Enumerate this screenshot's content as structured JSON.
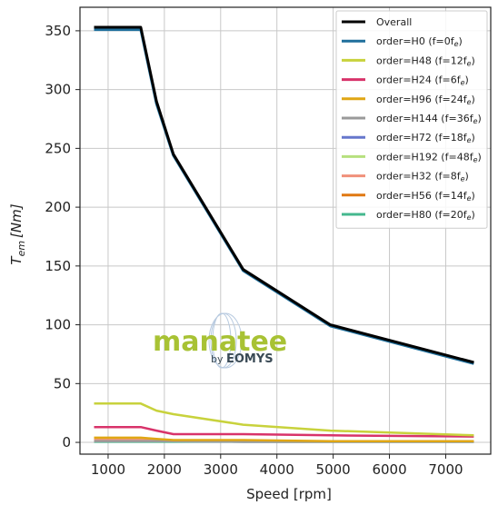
{
  "chart_data": {
    "type": "line",
    "title": "",
    "xlabel": "Speed [rpm]",
    "ylabel_main": "T",
    "ylabel_sub": "em",
    "ylabel_unit": "[Nm]",
    "xlim": [
      500,
      7800
    ],
    "ylim": [
      -10,
      370
    ],
    "xticks": [
      1000,
      2000,
      3000,
      4000,
      5000,
      6000,
      7000
    ],
    "yticks": [
      0,
      50,
      100,
      150,
      200,
      250,
      300,
      350
    ],
    "grid": true,
    "legend_position": "top-right",
    "series": [
      {
        "name": "Overall",
        "color": "#000000",
        "x": [
          750,
          1580,
          1860,
          2160,
          3400,
          4950,
          7500
        ],
        "y": [
          353,
          353,
          290,
          245,
          147,
          100,
          68
        ]
      },
      {
        "name": "order=H0 (f=0f",
        "color": "#1f6f9c",
        "x": [
          750,
          1580,
          1860,
          2160,
          3400,
          4950,
          7500
        ],
        "y": [
          351,
          351,
          288,
          244,
          146,
          99,
          67
        ]
      },
      {
        "name": "order=H48 (f=12f",
        "color": "#c8d23c",
        "x": [
          750,
          1580,
          1860,
          2160,
          3400,
          4950,
          7500
        ],
        "y": [
          33,
          33,
          27,
          24,
          15,
          10,
          6
        ]
      },
      {
        "name": "order=H24 (f=6f",
        "color": "#d8336a",
        "x": [
          750,
          1580,
          1860,
          2160,
          3400,
          4950,
          7500
        ],
        "y": [
          13,
          13,
          10,
          7,
          7,
          6,
          5
        ]
      },
      {
        "name": "order=H96 (f=24f",
        "color": "#e0a614",
        "x": [
          750,
          1580,
          1860,
          2160,
          3400,
          4950,
          7500
        ],
        "y": [
          4,
          4,
          3,
          2,
          2,
          1,
          1
        ]
      },
      {
        "name": "order=H144 (f=36f",
        "color": "#9a9a9a",
        "x": [
          750,
          1580,
          1860,
          2160,
          3400,
          4950,
          7500
        ],
        "y": [
          1,
          1,
          1,
          1,
          0.5,
          0.5,
          0.5
        ]
      },
      {
        "name": "order=H72 (f=18f",
        "color": "#6677cc",
        "x": [
          750,
          1580,
          1860,
          2160,
          3400,
          4950,
          7500
        ],
        "y": [
          1,
          1,
          1,
          1,
          0.5,
          0.5,
          0.5
        ]
      },
      {
        "name": "order=H192 (f=48f",
        "color": "#b6e07e",
        "x": [
          750,
          1580,
          1860,
          2160,
          3400,
          4950,
          7500
        ],
        "y": [
          1,
          1,
          1,
          1,
          0.5,
          0.5,
          0.5
        ]
      },
      {
        "name": "order=H32 (f=8f",
        "color": "#f0907a",
        "x": [
          750,
          1580,
          1860,
          2160,
          3400,
          4950,
          7500
        ],
        "y": [
          2,
          2,
          2,
          1.5,
          1,
          1,
          1
        ]
      },
      {
        "name": "order=H56 (f=14f",
        "color": "#e07812",
        "x": [
          750,
          1580,
          1860,
          2160,
          3400,
          4950,
          7500
        ],
        "y": [
          2,
          2,
          1.5,
          1,
          1,
          1,
          1
        ]
      },
      {
        "name": "order=H80 (f=20f",
        "color": "#45b88e",
        "x": [
          750,
          1580,
          1860,
          2160,
          3400,
          4950,
          7500
        ],
        "y": [
          0.5,
          0.5,
          0.5,
          0.5,
          0.5,
          0.5,
          0.5
        ]
      }
    ],
    "legend_subscript": "e",
    "legend_close": ")"
  },
  "watermark": {
    "main": "manatee",
    "sub_prefix": "by ",
    "sub_brand": "EOMYS"
  }
}
